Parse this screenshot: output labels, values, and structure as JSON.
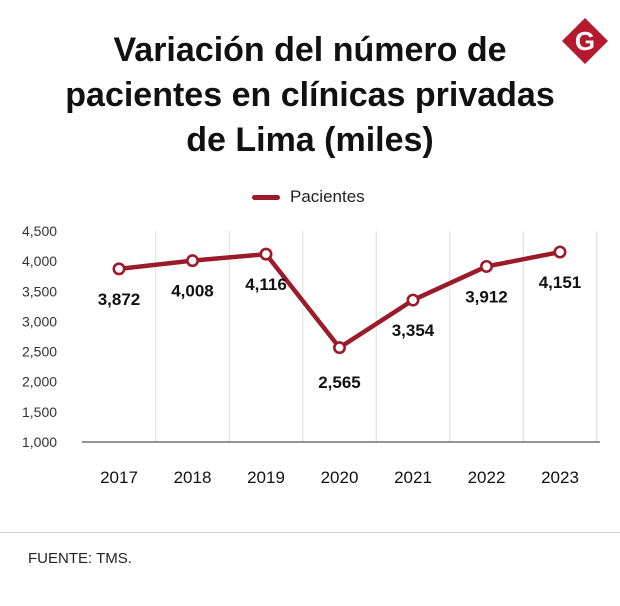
{
  "header": {
    "title_lines": [
      "Variación del número de",
      "pacientes en clínicas privadas",
      "de Lima (miles)"
    ],
    "logo_letter": "G"
  },
  "colors": {
    "series": "#9b1b2a",
    "logo": "#b5192e",
    "grid": "#dedede",
    "axis": "#555555"
  },
  "chart_data": {
    "type": "line",
    "title": "Variación del número de pacientes en clínicas privadas de Lima (miles)",
    "xlabel": "",
    "ylabel": "",
    "categories": [
      "2017",
      "2018",
      "2019",
      "2020",
      "2021",
      "2022",
      "2023"
    ],
    "series": [
      {
        "name": "Pacientes",
        "values": [
          3872,
          4008,
          4116,
          2565,
          3354,
          3912,
          4151
        ]
      }
    ],
    "data_labels": [
      "3,872",
      "4,008",
      "4,116",
      "2,565",
      "3,354",
      "3,912",
      "4,151"
    ],
    "y_ticks": [
      "1,000",
      "1,500",
      "2,000",
      "2,500",
      "3,000",
      "3,500",
      "4,000",
      "4,500"
    ],
    "ylim": [
      1000,
      4500
    ],
    "grid": "vertical",
    "legend": "top-center"
  },
  "footer": {
    "source": "FUENTE: TMS."
  }
}
